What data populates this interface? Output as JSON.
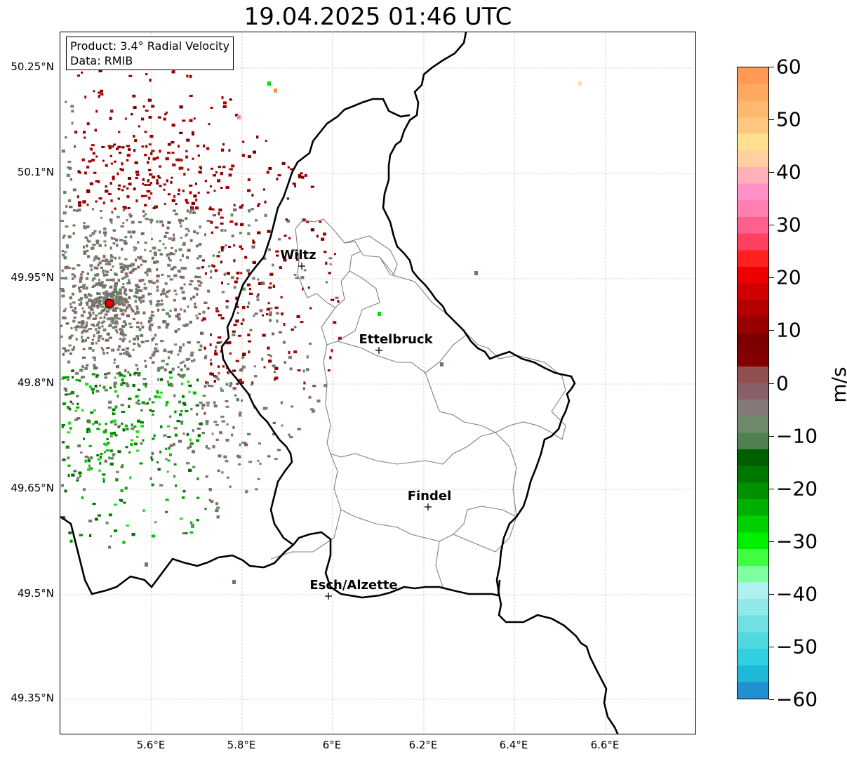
{
  "title": "19.04.2025 01:46 UTC",
  "info": {
    "product": "Product: 3.4° Radial Velocity",
    "data": "Data: RMIB"
  },
  "lat_labels": [
    "50.25°N",
    "50.1°N",
    "49.95°N",
    "49.8°N",
    "49.65°N",
    "49.5°N",
    "49.35°N"
  ],
  "lon_labels": [
    "5.6°E",
    "5.8°E",
    "6°E",
    "6.2°E",
    "6.4°E",
    "6.6°E"
  ],
  "cities": [
    {
      "name": "Wiltz"
    },
    {
      "name": "Ettelbruck"
    },
    {
      "name": "Findel"
    },
    {
      "name": "Esch/Alzette"
    }
  ],
  "radar_site": {
    "name": "radar-site",
    "color": "#e00000"
  },
  "colorbar": {
    "unit": "m/s",
    "ticks": [
      "60",
      "50",
      "40",
      "30",
      "20",
      "10",
      "0",
      "−10",
      "−20",
      "−30",
      "−40",
      "−50",
      "−60"
    ],
    "range": [
      -60,
      60
    ],
    "colors": [
      "#ff9955",
      "#ffa860",
      "#ffb870",
      "#ffc880",
      "#ffe090",
      "#ffd0a0",
      "#ffb0b8",
      "#ff90c8",
      "#ff80b0",
      "#ff6090",
      "#ff4060",
      "#ff2020",
      "#ee0000",
      "#d00000",
      "#b40000",
      "#980000",
      "#7c0000",
      "#840000",
      "#905050",
      "#8a6068",
      "#857a78",
      "#6d8a6a",
      "#508050",
      "#006000",
      "#007800",
      "#009000",
      "#00b000",
      "#00d000",
      "#00f000",
      "#40ff40",
      "#80ffa0",
      "#b0f0f0",
      "#90e8e8",
      "#70e0e0",
      "#50d8e0",
      "#30d0e0",
      "#20b8d8",
      "#2090d0"
    ]
  },
  "colors": {
    "border": "#000000",
    "cantons": "#808080",
    "grid": "#b0b0b0",
    "inbound": "#007a00",
    "outbound": "#8b0000",
    "near_zero": "#7f7a78"
  }
}
